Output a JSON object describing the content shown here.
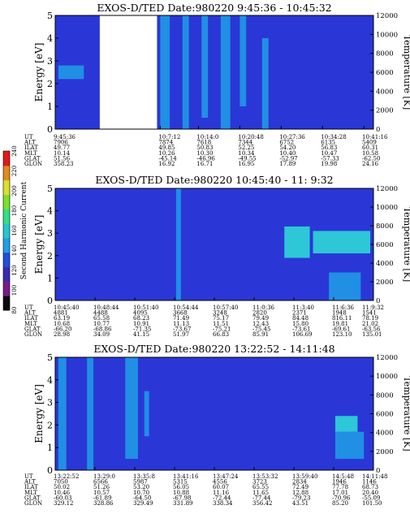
{
  "colorbar": {
    "label": "Second Harmonic Current",
    "ticks": [
      "80",
      "100",
      "120",
      "140",
      "160",
      "180",
      "200",
      "220",
      "240"
    ]
  },
  "panel_colors": {
    "background": "#2a37d6",
    "stripe": "#1f9fe6",
    "bright": "#2ee0d8",
    "gap": "#ffffff"
  },
  "colorbar_colors": [
    "#0a0a0a",
    "#7a1a8a",
    "#3a2ab0",
    "#1f4fe0",
    "#1f9fe6",
    "#22c8d0",
    "#2ee088",
    "#7ae02a",
    "#d8e02a",
    "#e08a1a",
    "#e01a1a"
  ],
  "chart_data": [
    {
      "type": "heatmap",
      "title": "EXOS-D/TED   Date:980220  9:45:36 - 10:45:32",
      "ylabel": "Energy [eV]",
      "y2label": "Temperature [K]",
      "ylim": [
        0,
        5
      ],
      "y2lim": [
        0,
        12000
      ],
      "yticks": [
        "0",
        "1",
        "2",
        "3",
        "4",
        "5"
      ],
      "y2ticks": [
        "0",
        "2000",
        "4000",
        "6000",
        "8000",
        "10000",
        "12000"
      ],
      "gap_fraction": [
        0.14,
        0.32
      ],
      "stripes": [
        {
          "x": 0.33,
          "w": 0.03,
          "y0": 0,
          "y1": 1,
          "level": "stripe"
        },
        {
          "x": 0.4,
          "w": 0.02,
          "y0": 0,
          "y1": 1,
          "level": "stripe"
        },
        {
          "x": 0.46,
          "w": 0.02,
          "y0": 0.1,
          "y1": 1,
          "level": "stripe"
        },
        {
          "x": 0.52,
          "w": 0.03,
          "y0": 0,
          "y1": 1,
          "level": "stripe"
        },
        {
          "x": 0.58,
          "w": 0.02,
          "y0": 0.2,
          "y1": 1,
          "level": "stripe"
        },
        {
          "x": 0.65,
          "w": 0.02,
          "y0": 0,
          "y1": 0.8,
          "level": "stripe"
        },
        {
          "x": 0.01,
          "w": 0.08,
          "y0": 0.44,
          "y1": 0.56,
          "level": "stripe"
        }
      ],
      "axis_labels": [
        "UT",
        "ALT",
        "ILAT",
        "MLT",
        "GLAT",
        "GLON"
      ],
      "columns": [
        [
          "9:45:36",
          "7906",
          "49.77",
          "10.14",
          "51.56",
          "358.23"
        ],
        [
          "10:7:12",
          "7874",
          "49.85",
          "10.26",
          "-45.14",
          "16.92"
        ],
        [
          "10:14:0",
          "7618",
          "50.83",
          "10.30",
          "-46.96",
          "16.71"
        ],
        [
          "10:20:48",
          "7344",
          "52.25",
          "10.34",
          "-49.55",
          "16.95"
        ],
        [
          "10:27:36",
          "6752",
          "54.20",
          "10.40",
          "-52.97",
          "17.89"
        ],
        [
          "10:34:28",
          "6135",
          "56.83",
          "10.47",
          "-57.33",
          "19.98"
        ],
        [
          "10:41:16",
          "5409",
          "60.31",
          "10.58",
          "-62.50",
          "24.16"
        ]
      ],
      "column_fraction": [
        0.0,
        0.33,
        0.45,
        0.58,
        0.71,
        0.84,
        0.97
      ]
    },
    {
      "type": "heatmap",
      "title": "EXOS-D/TED   Date:980220  10:45:40 - 11: 9:32",
      "ylabel": "Energy [eV]",
      "y2label": "Temperature [K]",
      "ylim": [
        0,
        5
      ],
      "y2lim": [
        0,
        12000
      ],
      "yticks": [
        "0",
        "1",
        "2",
        "3",
        "4",
        "5"
      ],
      "y2ticks": [
        "0",
        "2000",
        "4000",
        "6000",
        "8000",
        "10000",
        "12000"
      ],
      "gap_fraction": null,
      "stripes": [
        {
          "x": 0.38,
          "w": 0.015,
          "y0": 0,
          "y1": 1,
          "level": "stripe"
        },
        {
          "x": 0.72,
          "w": 0.08,
          "y0": 0.38,
          "y1": 0.66,
          "level": "bright"
        },
        {
          "x": 0.81,
          "w": 0.18,
          "y0": 0.42,
          "y1": 0.62,
          "level": "bright"
        },
        {
          "x": 0.86,
          "w": 0.1,
          "y0": 0.0,
          "y1": 0.25,
          "level": "stripe"
        }
      ],
      "axis_labels": [
        "UT",
        "ALT",
        "ILAT",
        "MLT",
        "GLAT",
        "GLON"
      ],
      "columns": [
        [
          "10:45:40",
          "4881",
          "63.19",
          "10.68",
          "-66.20",
          "28.98"
        ],
        [
          "10:48:44",
          "4488",
          "65.58",
          "10.77",
          "-68.86",
          "34.09"
        ],
        [
          "10:51:40",
          "4095",
          "68.23",
          "10.91",
          "-71.35",
          "41.15"
        ],
        [
          "10:54:44",
          "3668",
          "71.49",
          "11.13",
          "-73.67",
          "51.97"
        ],
        [
          "10:57:40",
          "3248",
          "75.17",
          "11.51",
          "-75.21",
          "66.83"
        ],
        [
          "11:0:36",
          "2820",
          "79.49",
          "12.43",
          "-75.45",
          "85.91"
        ],
        [
          "11:3:40",
          "2371",
          "84.48",
          "15.80",
          "-73.61",
          "106.69"
        ],
        [
          "11:6:36",
          "1948",
          "816.11",
          "19.81",
          "-69.61",
          "123.10"
        ],
        [
          "11:9:32",
          "1541",
          "78.19",
          "21.02",
          "-63.56",
          "135.01"
        ]
      ],
      "column_fraction": [
        0.0,
        0.125,
        0.25,
        0.375,
        0.5,
        0.625,
        0.75,
        0.875,
        1.0
      ]
    },
    {
      "type": "heatmap",
      "title": "EXOS-D/TED   Date:980220  13:22:52 - 14:11:48",
      "ylabel": "Energy [eV]",
      "y2label": "Temperature [K]",
      "ylim": [
        0,
        5
      ],
      "y2lim": [
        0,
        12000
      ],
      "yticks": [
        "0",
        "1",
        "2",
        "3",
        "4",
        "5"
      ],
      "y2ticks": [
        "0",
        "2000",
        "4000",
        "6000",
        "8000",
        "10000",
        "12000"
      ],
      "gap_fraction": null,
      "stripes": [
        {
          "x": 0.01,
          "w": 0.025,
          "y0": 0,
          "y1": 1,
          "level": "stripe"
        },
        {
          "x": 0.1,
          "w": 0.02,
          "y0": 0,
          "y1": 1,
          "level": "stripe"
        },
        {
          "x": 0.22,
          "w": 0.04,
          "y0": 0.1,
          "y1": 1,
          "level": "stripe"
        },
        {
          "x": 0.28,
          "w": 0.015,
          "y0": 0.3,
          "y1": 0.7,
          "level": "stripe"
        },
        {
          "x": 0.88,
          "w": 0.07,
          "y0": 0.34,
          "y1": 0.48,
          "level": "bright"
        },
        {
          "x": 0.88,
          "w": 0.09,
          "y0": 0.1,
          "y1": 0.34,
          "level": "stripe"
        }
      ],
      "axis_labels": [
        "UT",
        "ALT",
        "ILAT",
        "MLT",
        "GLAT",
        "GLON"
      ],
      "columns": [
        [
          "13:22:52",
          "7050",
          "50.02",
          "10.46",
          "-60.03",
          "329.12"
        ],
        [
          "13:29:0",
          "6566",
          "51.26",
          "10.57",
          "-61.89",
          "328.86"
        ],
        [
          "13:35:8",
          "5987",
          "53.20",
          "10.70",
          "-64.50",
          "329.49"
        ],
        [
          "13:41:16",
          "5315",
          "56.05",
          "10.88",
          "-67.98",
          "331.89"
        ],
        [
          "13:47:24",
          "4556",
          "60.07",
          "11.16",
          "-72.44",
          "338.34"
        ],
        [
          "13:53:32",
          "3723",
          "65.55",
          "11.65",
          "-77.44",
          "356.42"
        ],
        [
          "13:59:40",
          "2834",
          "72.49",
          "12.88",
          "-79.23",
          "43.51"
        ],
        [
          "14:5:48",
          "1946",
          "77.78",
          "17.01",
          "-70.96",
          "85.20"
        ],
        [
          "14:11:48",
          "1146",
          "68.73",
          "20.40",
          "-55.09",
          "101.50"
        ]
      ],
      "column_fraction": [
        0.0,
        0.125,
        0.25,
        0.375,
        0.5,
        0.625,
        0.75,
        0.875,
        1.0
      ]
    }
  ]
}
